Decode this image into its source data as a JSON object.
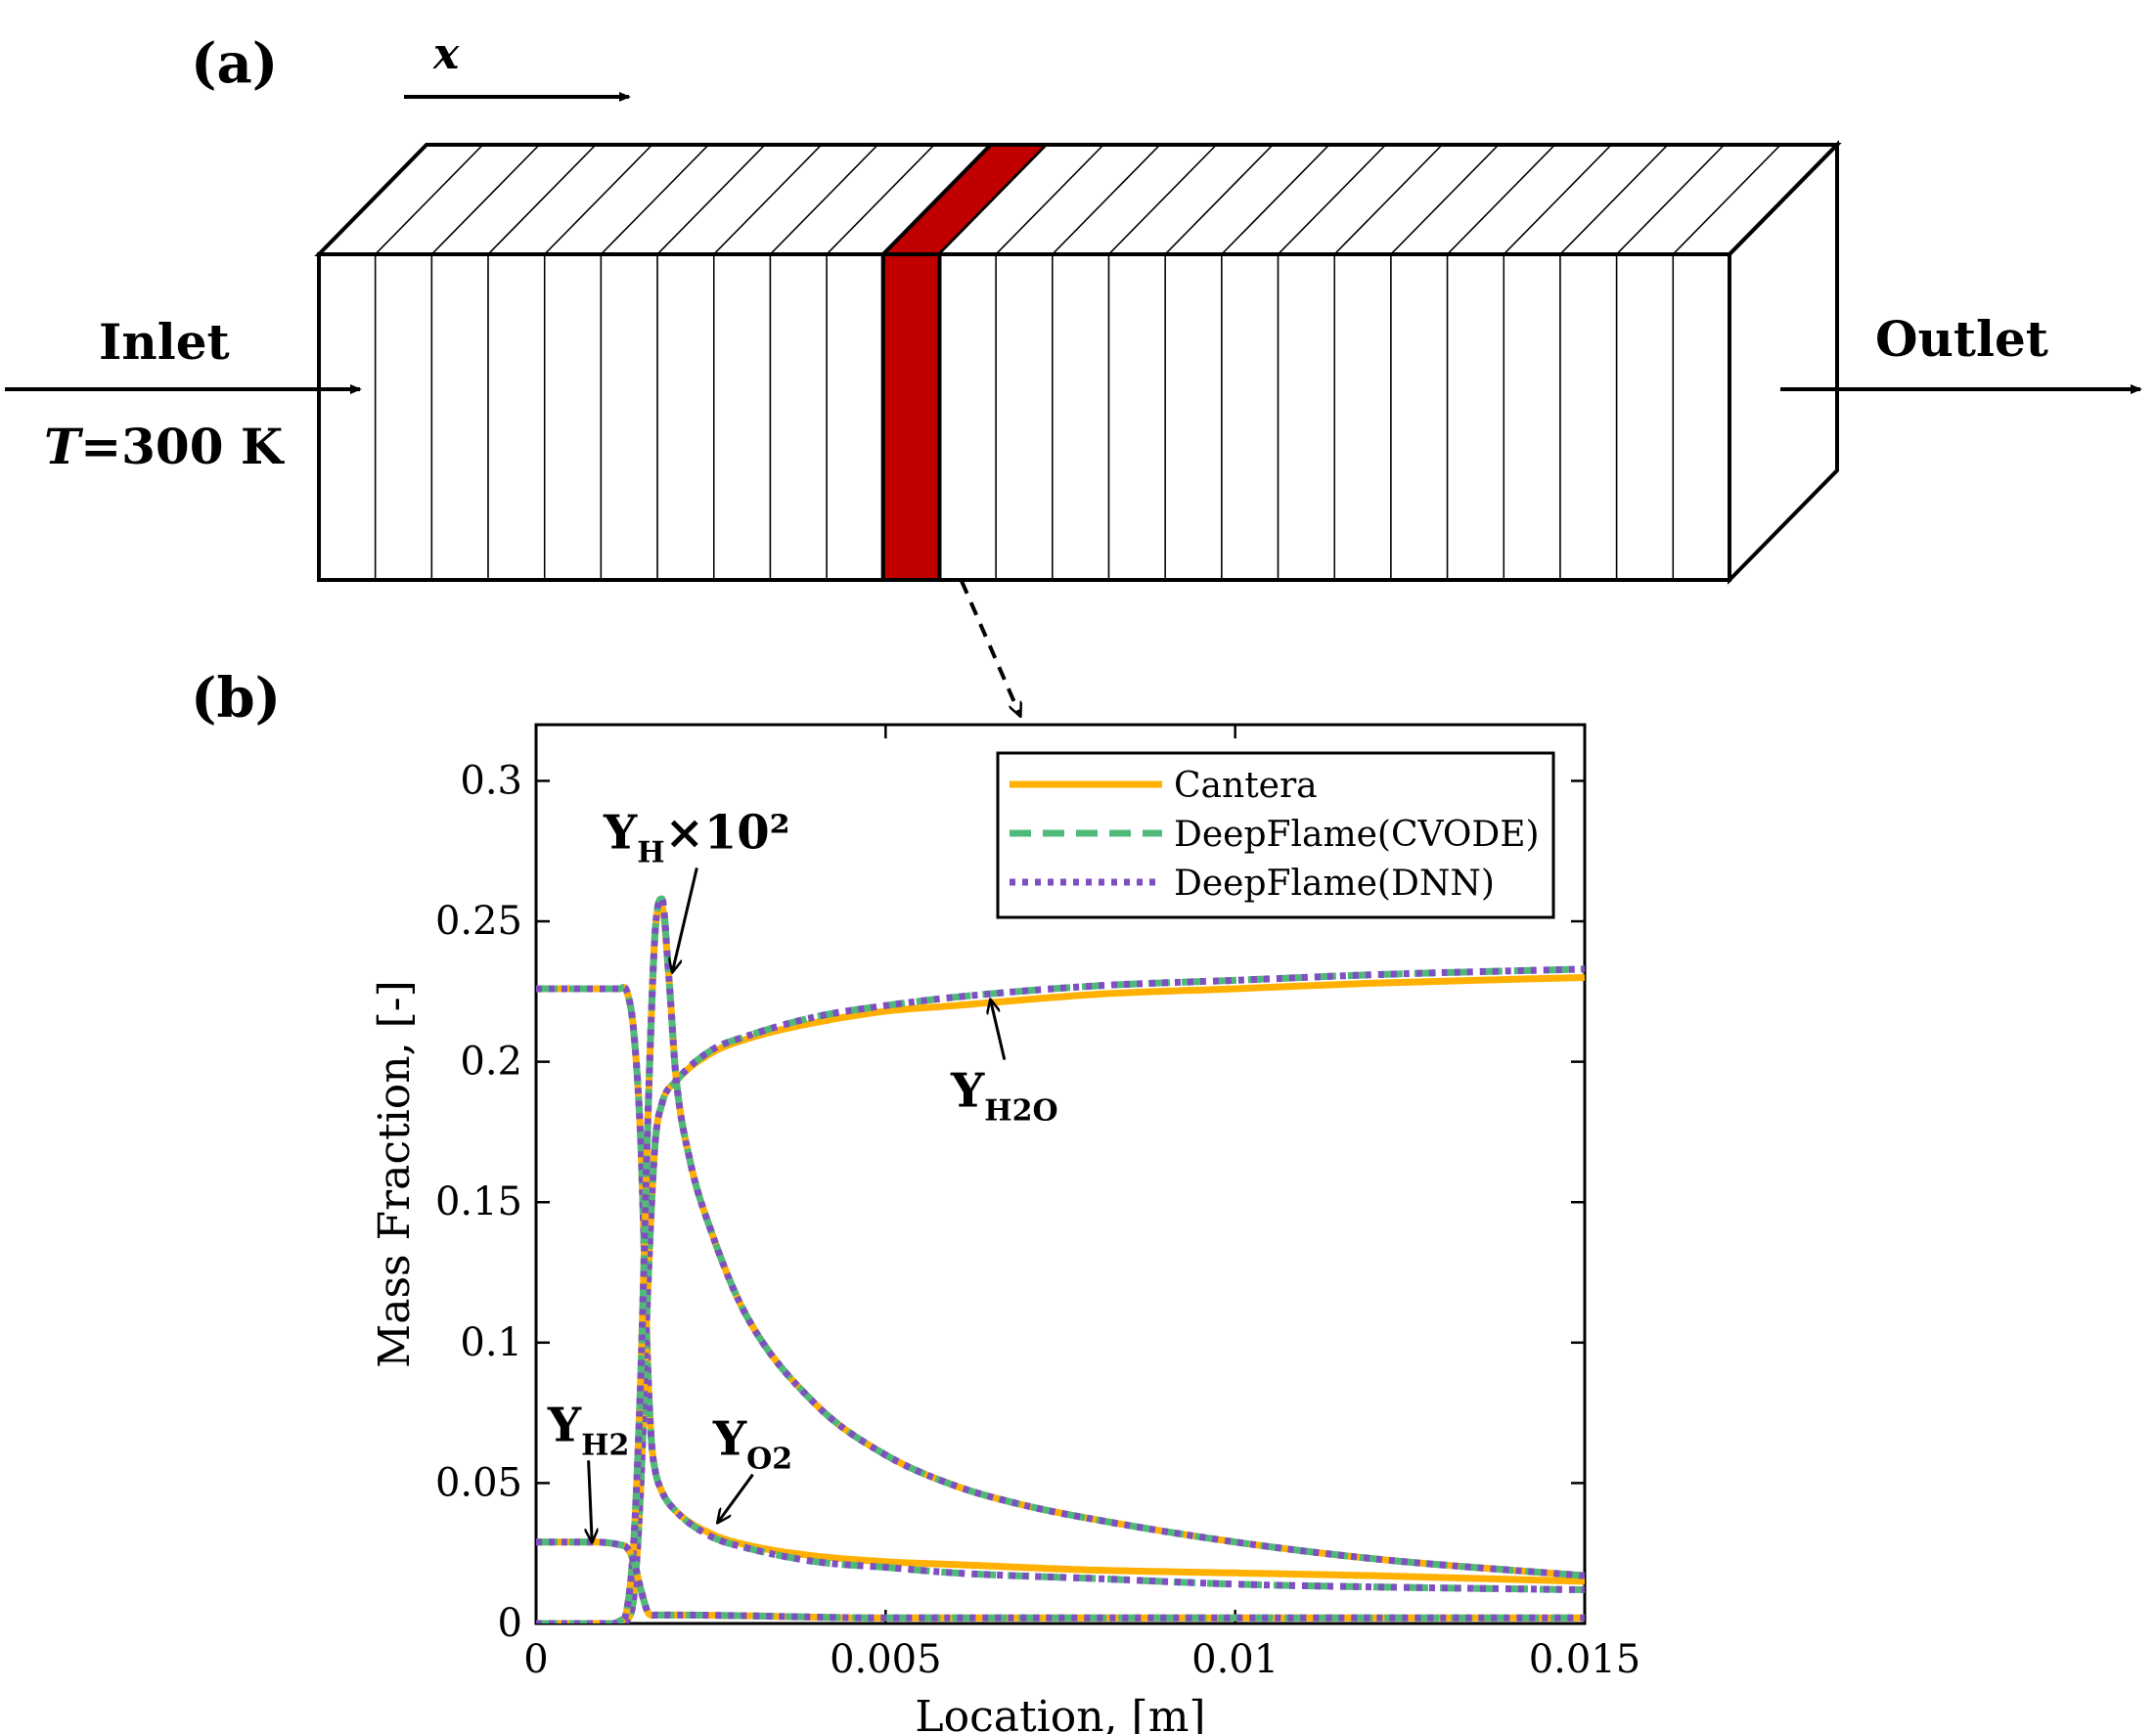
{
  "panel_a": {
    "label": "(a)",
    "x_axis_label": "x",
    "inlet": {
      "label": "Inlet",
      "temperature": "=300 K",
      "temperature_var": "T"
    },
    "outlet": {
      "label": "Outlet"
    },
    "cells": 25,
    "highlighted_cell": 11,
    "highlight_color": "#c00000"
  },
  "panel_b": {
    "label": "(b)",
    "chart_data": {
      "type": "line",
      "title": "",
      "xlabel": "Location, [m]",
      "ylabel": "Mass Fraction, [-]",
      "xlim": [
        0,
        0.015
      ],
      "ylim": [
        0,
        0.32
      ],
      "xticks": [
        0,
        0.005,
        0.01,
        0.015
      ],
      "xtick_labels": [
        "0",
        "0.005",
        "0.01",
        "0.015"
      ],
      "yticks": [
        0,
        0.05,
        0.1,
        0.15,
        0.2,
        0.25,
        0.3
      ],
      "ytick_labels": [
        "0",
        "0.05",
        "0.1",
        "0.15",
        "0.2",
        "0.25",
        "0.3"
      ],
      "grid": false,
      "legend_position": "top-right",
      "legend": [
        {
          "name": "Cantera",
          "color": "#ffb000",
          "style": "solid"
        },
        {
          "name": "DeepFlame(CVODE)",
          "color": "#4fb97a",
          "style": "dashed"
        },
        {
          "name": "DeepFlame(DNN)",
          "color": "#7e4fc1",
          "style": "dotted"
        }
      ],
      "curves": [
        {
          "species": "O2",
          "x": [
            0,
            0.0012,
            0.0013,
            0.0014,
            0.0015,
            0.00155,
            0.0016,
            0.00165,
            0.0017,
            0.0018,
            0.002,
            0.0025,
            0.003,
            0.004,
            0.005,
            0.006,
            0.008,
            0.01,
            0.012,
            0.015
          ],
          "cantera": [
            0.226,
            0.226,
            0.225,
            0.21,
            0.17,
            0.13,
            0.09,
            0.065,
            0.055,
            0.047,
            0.04,
            0.032,
            0.028,
            0.024,
            0.022,
            0.021,
            0.019,
            0.018,
            0.017,
            0.015
          ],
          "deepflame": [
            0.226,
            0.226,
            0.225,
            0.21,
            0.17,
            0.13,
            0.09,
            0.065,
            0.055,
            0.047,
            0.04,
            0.031,
            0.027,
            0.022,
            0.02,
            0.018,
            0.016,
            0.014,
            0.013,
            0.012
          ]
        },
        {
          "species": "H2O",
          "x": [
            0,
            0.0012,
            0.0013,
            0.0014,
            0.0015,
            0.0016,
            0.0017,
            0.0018,
            0.002,
            0.0025,
            0.003,
            0.004,
            0.005,
            0.006,
            0.008,
            0.01,
            0.012,
            0.015
          ],
          "cantera": [
            0,
            0,
            0.001,
            0.01,
            0.05,
            0.12,
            0.17,
            0.185,
            0.193,
            0.203,
            0.208,
            0.214,
            0.218,
            0.22,
            0.224,
            0.226,
            0.228,
            0.23
          ],
          "deepflame": [
            0,
            0,
            0.001,
            0.01,
            0.05,
            0.12,
            0.17,
            0.185,
            0.193,
            0.204,
            0.209,
            0.216,
            0.22,
            0.223,
            0.227,
            0.229,
            0.231,
            0.233
          ]
        },
        {
          "species": "H x 10^2",
          "x": [
            0,
            0.001,
            0.0012,
            0.0013,
            0.0014,
            0.0015,
            0.0016,
            0.0017,
            0.0018,
            0.0019,
            0.002,
            0.0022,
            0.0025,
            0.003,
            0.004,
            0.005,
            0.006,
            0.007,
            0.008,
            0.01,
            0.012,
            0.015
          ],
          "cantera": [
            0,
            0,
            0.001,
            0.005,
            0.03,
            0.09,
            0.18,
            0.245,
            0.255,
            0.23,
            0.195,
            0.165,
            0.14,
            0.11,
            0.078,
            0.06,
            0.049,
            0.042,
            0.037,
            0.029,
            0.023,
            0.017
          ],
          "deepflame": [
            0,
            0,
            0.001,
            0.005,
            0.03,
            0.09,
            0.18,
            0.245,
            0.258,
            0.23,
            0.195,
            0.165,
            0.14,
            0.11,
            0.078,
            0.06,
            0.049,
            0.042,
            0.037,
            0.029,
            0.023,
            0.017
          ]
        },
        {
          "species": "H2",
          "x": [
            0,
            0.0008,
            0.0012,
            0.0013,
            0.0014,
            0.0015,
            0.0016,
            0.0017,
            0.002,
            0.005,
            0.01,
            0.015
          ],
          "cantera": [
            0.029,
            0.029,
            0.028,
            0.027,
            0.022,
            0.012,
            0.004,
            0.003,
            0.003,
            0.002,
            0.002,
            0.002
          ],
          "deepflame": [
            0.029,
            0.029,
            0.028,
            0.027,
            0.022,
            0.012,
            0.004,
            0.003,
            0.003,
            0.002,
            0.002,
            0.002
          ]
        }
      ],
      "annotations": [
        {
          "base": "Y",
          "sub": "H",
          "sup": "×10²",
          "x": 0.0023,
          "y": 0.276,
          "arrow_to": [
            0.00195,
            0.232
          ]
        },
        {
          "base": "Y",
          "sub": "H2O",
          "sup": "",
          "x": 0.0067,
          "y": 0.184,
          "arrow_to": [
            0.0065,
            0.222
          ]
        },
        {
          "base": "Y",
          "sub": "H2",
          "sup": "",
          "x": 0.00075,
          "y": 0.065,
          "arrow_to": [
            0.0008,
            0.029
          ]
        },
        {
          "base": "Y",
          "sub": "O2",
          "sup": "",
          "x": 0.0031,
          "y": 0.06,
          "arrow_to": [
            0.0026,
            0.036
          ]
        }
      ]
    }
  }
}
